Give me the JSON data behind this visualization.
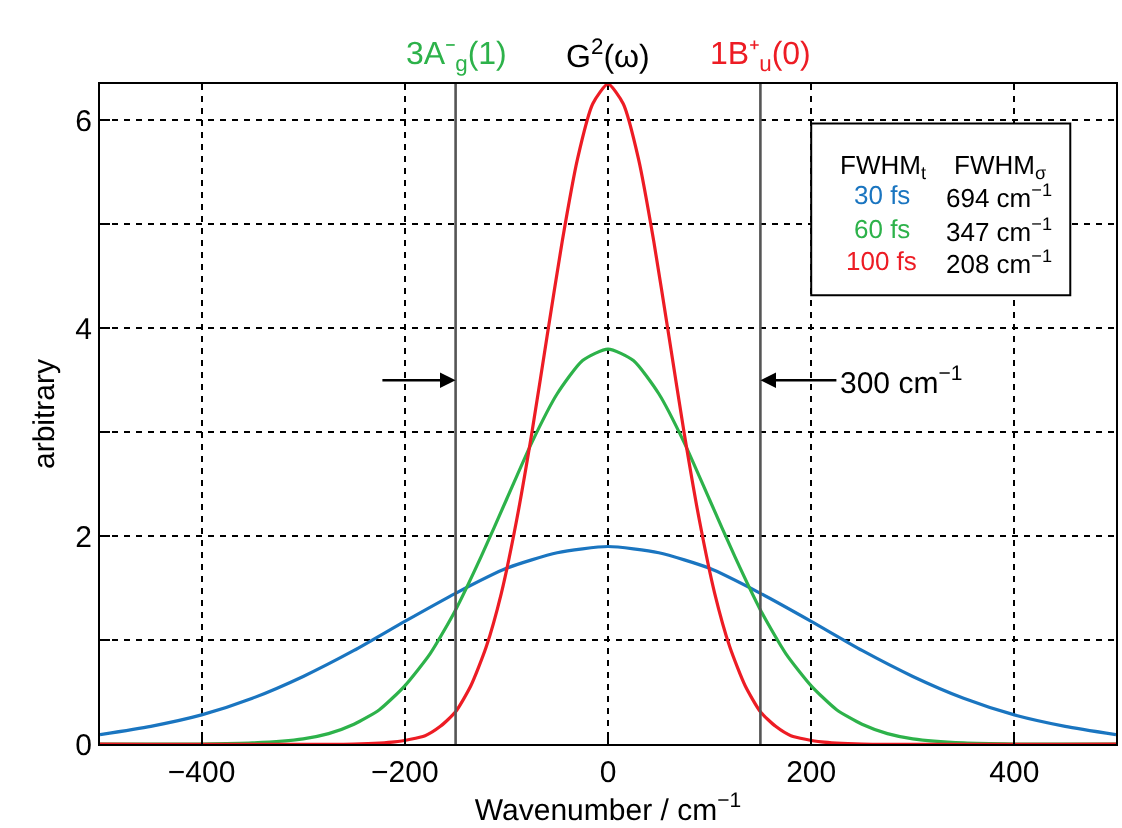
{
  "chart_data": {
    "type": "line",
    "xlabel": "Wavenumber / cm$^{−1}$",
    "ylabel": "arbitrary",
    "xlim": [
      -500,
      500
    ],
    "ylim": [
      0,
      6.35
    ],
    "xticks": [
      {
        "value": -400,
        "label": "−400"
      },
      {
        "value": -200,
        "label": "−200"
      },
      0,
      200,
      400
    ],
    "yticks": [
      0,
      {
        "value": 1,
        "label": null
      },
      2,
      {
        "value": 3,
        "label": null
      },
      4,
      {
        "value": 5,
        "label": null
      },
      6
    ],
    "grid": true,
    "legend": "top right",
    "marker": "none",
    "line_style": "solid",
    "series": [
      {
        "name": "30 fs",
        "color": "#1a75c0",
        "x": [
          -500,
          -450,
          -400,
          -350,
          -300,
          -250,
          -200,
          -150,
          -100,
          -50,
          0,
          50,
          100,
          150,
          200,
          250,
          300,
          350,
          400,
          450,
          500
        ],
        "values": [
          0.09,
          0.17,
          0.28,
          0.44,
          0.65,
          0.9,
          1.18,
          1.45,
          1.69,
          1.84,
          1.9,
          1.84,
          1.69,
          1.45,
          1.18,
          0.9,
          0.65,
          0.44,
          0.28,
          0.17,
          0.09
        ]
      },
      {
        "name": "60 fs",
        "color": "#2db24a",
        "x": [
          -500,
          -400,
          -350,
          -300,
          -275,
          -250,
          -225,
          -200,
          -175,
          -150,
          -125,
          -100,
          -75,
          -50,
          -25,
          0,
          25,
          50,
          75,
          100,
          125,
          150,
          175,
          200,
          225,
          250,
          275,
          300,
          350,
          400,
          500
        ],
        "values": [
          0,
          0,
          0.01,
          0.05,
          0.1,
          0.19,
          0.33,
          0.56,
          0.87,
          1.29,
          1.8,
          2.35,
          2.9,
          3.37,
          3.69,
          3.8,
          3.69,
          3.37,
          2.9,
          2.35,
          1.8,
          1.29,
          0.87,
          0.56,
          0.33,
          0.19,
          0.1,
          0.05,
          0.01,
          0,
          0
        ]
      },
      {
        "name": "100 fs",
        "color": "#ed1c24",
        "x": [
          -500,
          -250,
          -210,
          -180,
          -165,
          -150,
          -135,
          -120,
          -105,
          -90,
          -75,
          -60,
          -45,
          -30,
          -15,
          0,
          15,
          30,
          45,
          60,
          75,
          90,
          105,
          120,
          135,
          150,
          165,
          180,
          210,
          250,
          500
        ],
        "values": [
          0,
          0,
          0.02,
          0.08,
          0.17,
          0.31,
          0.56,
          0.93,
          1.45,
          2.15,
          2.99,
          3.92,
          4.84,
          5.63,
          6.16,
          6.35,
          6.16,
          5.63,
          4.84,
          3.92,
          2.99,
          2.15,
          1.45,
          0.93,
          0.56,
          0.31,
          0.17,
          0.08,
          0.02,
          0,
          0
        ]
      }
    ],
    "ref_lines": [
      {
        "axis": "x",
        "value": -150,
        "label": "3A⁻$_{g}$(1)",
        "color": "#555555"
      },
      {
        "axis": "x",
        "value": 150,
        "label": "1B⁺$_{u}$(0)",
        "color": "#555555"
      }
    ],
    "annotations": [
      {
        "text": "G$^{2}$(ω)",
        "x": 0,
        "y": 6.35
      },
      {
        "text": "300 cm$^{−1}$",
        "x": 150,
        "y": 3.5
      },
      "FWHM$_{t}$",
      "FWHM$_{σ}$",
      "694 cm$^{−1}$",
      "347 cm$^{−1}$",
      "208 cm$^{−1}$"
    ]
  }
}
